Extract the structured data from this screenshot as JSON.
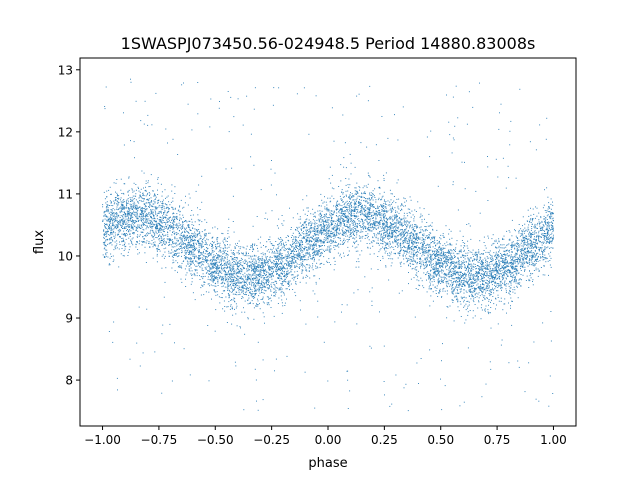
{
  "chart_data": {
    "type": "scatter",
    "title": "1SWASPJ073450.56-024948.5 Period 14880.83008s",
    "xlabel": "phase",
    "ylabel": "flux",
    "xlim": [
      -1.1,
      1.1
    ],
    "ylim": [
      7.26,
      13.19
    ],
    "xticks": [
      -1.0,
      -0.75,
      -0.5,
      -0.25,
      0.0,
      0.25,
      0.5,
      0.75,
      1.0
    ],
    "xtick_labels": [
      "−1.00",
      "−0.75",
      "−0.50",
      "−0.25",
      "0.00",
      "0.25",
      "0.50",
      "0.75",
      "1.00"
    ],
    "yticks": [
      8,
      9,
      10,
      11,
      12,
      13
    ],
    "ytick_labels": [
      "8",
      "9",
      "10",
      "11",
      "12",
      "13"
    ],
    "grid": false,
    "marker_color": "#1f77b4",
    "binned_phase": [
      -1.0,
      -0.9,
      -0.8,
      -0.7,
      -0.6,
      -0.5,
      -0.4,
      -0.3,
      -0.2,
      -0.1,
      0.0,
      0.1,
      0.2,
      0.3,
      0.4,
      0.5,
      0.6,
      0.7,
      0.8,
      0.9,
      1.0
    ],
    "binned_mean_flux": [
      10.44,
      10.63,
      10.63,
      10.44,
      10.15,
      9.86,
      9.67,
      9.67,
      9.86,
      10.15,
      10.44,
      10.63,
      10.63,
      10.44,
      10.15,
      9.86,
      9.67,
      9.67,
      9.86,
      10.15,
      10.44
    ],
    "scatter_sd": 0.25,
    "outlier_flux_range": [
      7.5,
      12.9
    ]
  }
}
